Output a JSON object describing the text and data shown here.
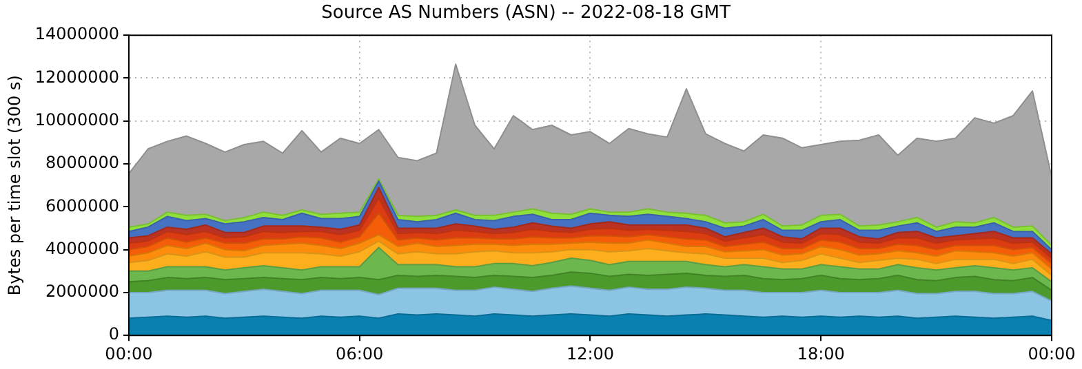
{
  "chart_data": {
    "type": "area",
    "stacked": true,
    "title": "Source AS Numbers (ASN) -- 2022-08-18 GMT",
    "ylabel": "Bytes per time slot (300 s)",
    "grid": true,
    "x": [
      0,
      0.5,
      1,
      1.5,
      2,
      2.5,
      3,
      3.5,
      4,
      4.5,
      5,
      5.5,
      6,
      6.5,
      7,
      7.5,
      8,
      8.5,
      9,
      9.5,
      10,
      10.5,
      11,
      11.5,
      12,
      12.5,
      13,
      13.5,
      14,
      14.5,
      15,
      15.5,
      16,
      16.5,
      17,
      17.5,
      18,
      18.5,
      19,
      19.5,
      20,
      20.5,
      21,
      21.5,
      22,
      22.5,
      23,
      23.5,
      24
    ],
    "xlim": [
      0,
      24
    ],
    "xticks": [
      {
        "value": 0,
        "label": "00:00"
      },
      {
        "value": 6,
        "label": "06:00"
      },
      {
        "value": 12,
        "label": "12:00"
      },
      {
        "value": 18,
        "label": "18:00"
      },
      {
        "value": 24,
        "label": "00:00"
      }
    ],
    "ylim": [
      0,
      14000000
    ],
    "yticks": [
      0,
      2000000,
      4000000,
      6000000,
      8000000,
      10000000,
      12000000,
      14000000
    ],
    "series": [
      {
        "color": "#0a80b0",
        "values": [
          800000,
          850000,
          900000,
          850000,
          900000,
          800000,
          850000,
          900000,
          850000,
          800000,
          900000,
          850000,
          900000,
          800000,
          1000000,
          950000,
          1000000,
          950000,
          900000,
          1000000,
          950000,
          900000,
          950000,
          1000000,
          950000,
          900000,
          1000000,
          950000,
          900000,
          950000,
          1000000,
          950000,
          900000,
          850000,
          900000,
          850000,
          900000,
          850000,
          900000,
          850000,
          900000,
          800000,
          850000,
          900000,
          850000,
          800000,
          850000,
          900000,
          700000
        ]
      },
      {
        "color": "#8cc4e4",
        "values": [
          1200000,
          1150000,
          1200000,
          1250000,
          1200000,
          1150000,
          1200000,
          1250000,
          1200000,
          1150000,
          1200000,
          1250000,
          1200000,
          1100000,
          1200000,
          1250000,
          1200000,
          1150000,
          1200000,
          1250000,
          1200000,
          1150000,
          1250000,
          1300000,
          1250000,
          1200000,
          1250000,
          1200000,
          1250000,
          1300000,
          1200000,
          1150000,
          1200000,
          1150000,
          1100000,
          1150000,
          1200000,
          1150000,
          1100000,
          1150000,
          1200000,
          1150000,
          1100000,
          1150000,
          1200000,
          1150000,
          1100000,
          1150000,
          900000
        ]
      },
      {
        "color": "#4c9a2c",
        "values": [
          500000,
          550000,
          600000,
          550000,
          600000,
          650000,
          600000,
          550000,
          600000,
          650000,
          600000,
          550000,
          600000,
          700000,
          600000,
          550000,
          600000,
          650000,
          600000,
          550000,
          600000,
          650000,
          600000,
          650000,
          700000,
          650000,
          600000,
          650000,
          700000,
          650000,
          600000,
          650000,
          700000,
          650000,
          600000,
          650000,
          700000,
          650000,
          600000,
          650000,
          700000,
          650000,
          600000,
          650000,
          700000,
          650000,
          600000,
          650000,
          500000
        ]
      },
      {
        "color": "#6cb84e",
        "values": [
          500000,
          450000,
          500000,
          550000,
          500000,
          450000,
          500000,
          550000,
          500000,
          450000,
          500000,
          550000,
          500000,
          1500000,
          500000,
          550000,
          500000,
          450000,
          500000,
          550000,
          600000,
          550000,
          600000,
          650000,
          600000,
          550000,
          600000,
          650000,
          600000,
          550000,
          500000,
          450000,
          500000,
          550000,
          500000,
          450000,
          500000,
          550000,
          500000,
          450000,
          500000,
          550000,
          500000,
          450000,
          500000,
          550000,
          500000,
          450000,
          400000
        ]
      },
      {
        "color": "#fdae1c",
        "values": [
          400000,
          500000,
          600000,
          500000,
          700000,
          600000,
          500000,
          600000,
          700000,
          800000,
          600000,
          500000,
          700000,
          300000,
          500000,
          600000,
          500000,
          600000,
          700000,
          600000,
          500000,
          600000,
          500000,
          400000,
          500000,
          600000,
          500000,
          600000,
          500000,
          400000,
          500000,
          400000,
          300000,
          400000,
          300000,
          400000,
          500000,
          400000,
          300000,
          400000,
          300000,
          400000,
          300000,
          400000,
          300000,
          400000,
          300000,
          400000,
          300000
        ]
      },
      {
        "color": "#fd8c0c",
        "values": [
          300000,
          350000,
          400000,
          350000,
          400000,
          350000,
          300000,
          350000,
          400000,
          450000,
          400000,
          350000,
          400000,
          300000,
          350000,
          400000,
          350000,
          400000,
          350000,
          300000,
          350000,
          400000,
          350000,
          300000,
          350000,
          400000,
          350000,
          400000,
          350000,
          300000,
          350000,
          300000,
          350000,
          400000,
          350000,
          300000,
          350000,
          400000,
          350000,
          300000,
          350000,
          300000,
          350000,
          400000,
          350000,
          300000,
          350000,
          300000,
          300000
        ]
      },
      {
        "color": "#f45e08",
        "values": [
          300000,
          300000,
          350000,
          300000,
          250000,
          300000,
          350000,
          300000,
          250000,
          300000,
          350000,
          300000,
          300000,
          1000000,
          300000,
          250000,
          300000,
          350000,
          300000,
          250000,
          300000,
          350000,
          300000,
          250000,
          300000,
          350000,
          300000,
          250000,
          300000,
          350000,
          300000,
          250000,
          300000,
          350000,
          300000,
          250000,
          300000,
          350000,
          300000,
          250000,
          300000,
          350000,
          300000,
          250000,
          300000,
          350000,
          300000,
          250000,
          250000
        ]
      },
      {
        "color": "#dc3c12",
        "values": [
          300000,
          250000,
          300000,
          350000,
          300000,
          250000,
          300000,
          350000,
          300000,
          250000,
          300000,
          350000,
          300000,
          700000,
          300000,
          250000,
          300000,
          350000,
          300000,
          250000,
          300000,
          350000,
          300000,
          250000,
          300000,
          350000,
          300000,
          250000,
          300000,
          350000,
          300000,
          250000,
          300000,
          350000,
          300000,
          250000,
          300000,
          350000,
          300000,
          250000,
          300000,
          350000,
          300000,
          250000,
          300000,
          350000,
          300000,
          250000,
          250000
        ]
      },
      {
        "color": "#bc3222",
        "values": [
          250000,
          250000,
          200000,
          250000,
          300000,
          250000,
          200000,
          250000,
          300000,
          250000,
          200000,
          250000,
          250000,
          500000,
          250000,
          200000,
          250000,
          300000,
          250000,
          200000,
          250000,
          300000,
          250000,
          200000,
          250000,
          300000,
          250000,
          200000,
          250000,
          300000,
          250000,
          200000,
          250000,
          300000,
          250000,
          200000,
          250000,
          300000,
          250000,
          200000,
          250000,
          300000,
          250000,
          200000,
          250000,
          300000,
          250000,
          200000,
          200000
        ]
      },
      {
        "color": "#4672c4",
        "values": [
          300000,
          400000,
          500000,
          400000,
          300000,
          400000,
          500000,
          400000,
          300000,
          600000,
          400000,
          500000,
          400000,
          300000,
          400000,
          300000,
          400000,
          500000,
          300000,
          400000,
          500000,
          400000,
          300000,
          400000,
          500000,
          300000,
          400000,
          500000,
          400000,
          300000,
          300000,
          400000,
          300000,
          400000,
          300000,
          400000,
          300000,
          400000,
          300000,
          400000,
          300000,
          400000,
          300000,
          400000,
          300000,
          400000,
          300000,
          300000,
          200000
        ]
      },
      {
        "color": "#90e03c",
        "values": [
          200000,
          150000,
          200000,
          250000,
          200000,
          150000,
          200000,
          250000,
          200000,
          150000,
          200000,
          250000,
          200000,
          100000,
          200000,
          250000,
          200000,
          150000,
          200000,
          250000,
          200000,
          250000,
          300000,
          250000,
          200000,
          150000,
          200000,
          250000,
          200000,
          250000,
          300000,
          250000,
          200000,
          250000,
          200000,
          250000,
          300000,
          250000,
          200000,
          250000,
          200000,
          250000,
          200000,
          250000,
          200000,
          250000,
          200000,
          250000,
          200000
        ]
      },
      {
        "color": "#a8a8a8",
        "values": [
          2500000,
          3500000,
          3300000,
          3700000,
          3300000,
          3200000,
          3400000,
          3300000,
          2900000,
          3700000,
          2900000,
          3500000,
          3200000,
          2300000,
          2700000,
          2600000,
          2900000,
          6800000,
          4200000,
          3100000,
          4500000,
          3700000,
          4100000,
          3700000,
          3600000,
          3200000,
          3900000,
          3500000,
          3500000,
          5800000,
          3800000,
          3700000,
          3300000,
          3700000,
          4100000,
          3600000,
          3300000,
          3400000,
          4000000,
          4200000,
          3100000,
          3700000,
          4000000,
          3900000,
          4900000,
          4400000,
          5200000,
          6300000,
          3200000
        ]
      }
    ]
  }
}
